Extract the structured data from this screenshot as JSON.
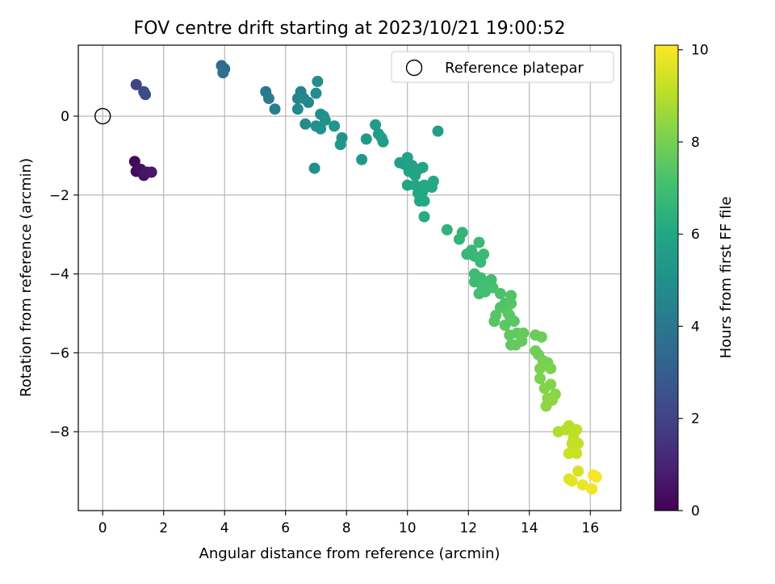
{
  "chart_data": {
    "type": "scatter",
    "title": "FOV centre drift starting at 2023/10/21 19:00:52",
    "xlabel": "Angular distance from reference (arcmin)",
    "ylabel": "Rotation from reference (arcmin)",
    "xlim": [
      -0.8,
      17
    ],
    "ylim": [
      -10,
      1.8
    ],
    "xticks": [
      0,
      2,
      4,
      6,
      8,
      10,
      12,
      14,
      16
    ],
    "yticks": [
      0,
      -2,
      -4,
      -6,
      -8
    ],
    "xtick_labels": [
      "0",
      "2",
      "4",
      "6",
      "8",
      "10",
      "12",
      "14",
      "16"
    ],
    "ytick_labels": [
      "0",
      "−2",
      "−4",
      "−6",
      "−8"
    ],
    "grid": true,
    "legend": {
      "position": "top-right",
      "entries": [
        "Reference platepar"
      ]
    },
    "reference_point": {
      "x": 0,
      "y": 0
    },
    "colormap": "viridis",
    "colorbar": {
      "label": "Hours from first FF file",
      "range": [
        0,
        10.1
      ],
      "ticks": [
        0,
        2,
        4,
        6,
        8,
        10
      ],
      "tick_labels": [
        "0",
        "2",
        "4",
        "6",
        "8",
        "10"
      ]
    },
    "points": [
      {
        "x": 1.05,
        "y": -1.15,
        "c": 0.2
      },
      {
        "x": 1.1,
        "y": -1.4,
        "c": 0.3
      },
      {
        "x": 1.25,
        "y": -1.35,
        "c": 0.4
      },
      {
        "x": 1.35,
        "y": -1.5,
        "c": 0.5
      },
      {
        "x": 1.45,
        "y": -1.42,
        "c": 0.6
      },
      {
        "x": 1.6,
        "y": -1.42,
        "c": 0.7
      },
      {
        "x": 1.1,
        "y": 0.8,
        "c": 2.0
      },
      {
        "x": 1.35,
        "y": 0.62,
        "c": 2.2
      },
      {
        "x": 1.4,
        "y": 0.55,
        "c": 2.4
      },
      {
        "x": 3.9,
        "y": 1.28,
        "c": 3.5
      },
      {
        "x": 4.0,
        "y": 1.2,
        "c": 3.6
      },
      {
        "x": 3.95,
        "y": 1.1,
        "c": 3.7
      },
      {
        "x": 5.35,
        "y": 0.62,
        "c": 4.0
      },
      {
        "x": 5.45,
        "y": 0.45,
        "c": 4.2
      },
      {
        "x": 5.65,
        "y": 0.18,
        "c": 4.3
      },
      {
        "x": 6.5,
        "y": 0.62,
        "c": 4.5
      },
      {
        "x": 6.4,
        "y": 0.45,
        "c": 4.5
      },
      {
        "x": 6.6,
        "y": 0.45,
        "c": 4.6
      },
      {
        "x": 6.75,
        "y": 0.35,
        "c": 4.6
      },
      {
        "x": 6.4,
        "y": 0.18,
        "c": 4.7
      },
      {
        "x": 6.65,
        "y": -0.2,
        "c": 4.8
      },
      {
        "x": 7.05,
        "y": 0.88,
        "c": 4.9
      },
      {
        "x": 7.0,
        "y": 0.58,
        "c": 4.9
      },
      {
        "x": 7.0,
        "y": -0.25,
        "c": 5.0
      },
      {
        "x": 7.15,
        "y": 0.05,
        "c": 5.0
      },
      {
        "x": 7.25,
        "y": 0.0,
        "c": 5.0
      },
      {
        "x": 7.3,
        "y": -0.1,
        "c": 5.1
      },
      {
        "x": 7.15,
        "y": -0.32,
        "c": 5.1
      },
      {
        "x": 6.95,
        "y": -1.32,
        "c": 5.0
      },
      {
        "x": 7.6,
        "y": -0.25,
        "c": 5.2
      },
      {
        "x": 7.85,
        "y": -0.55,
        "c": 5.2
      },
      {
        "x": 7.8,
        "y": -0.72,
        "c": 5.3
      },
      {
        "x": 8.5,
        "y": -1.1,
        "c": 5.4
      },
      {
        "x": 8.65,
        "y": -0.58,
        "c": 5.4
      },
      {
        "x": 8.95,
        "y": -0.22,
        "c": 5.5
      },
      {
        "x": 9.05,
        "y": -0.45,
        "c": 5.5
      },
      {
        "x": 9.15,
        "y": -0.55,
        "c": 5.6
      },
      {
        "x": 9.2,
        "y": -0.65,
        "c": 5.6
      },
      {
        "x": 9.75,
        "y": -1.18,
        "c": 5.7
      },
      {
        "x": 9.9,
        "y": -1.22,
        "c": 5.7
      },
      {
        "x": 10.0,
        "y": -1.05,
        "c": 5.8
      },
      {
        "x": 10.15,
        "y": -1.25,
        "c": 5.8
      },
      {
        "x": 10.05,
        "y": -1.4,
        "c": 5.8
      },
      {
        "x": 10.25,
        "y": -1.5,
        "c": 5.8
      },
      {
        "x": 10.35,
        "y": -1.35,
        "c": 5.9
      },
      {
        "x": 10.5,
        "y": -1.3,
        "c": 5.9
      },
      {
        "x": 10.0,
        "y": -1.75,
        "c": 5.9
      },
      {
        "x": 10.25,
        "y": -1.75,
        "c": 6.0
      },
      {
        "x": 10.35,
        "y": -1.95,
        "c": 6.0
      },
      {
        "x": 10.5,
        "y": -1.9,
        "c": 6.0
      },
      {
        "x": 10.4,
        "y": -2.15,
        "c": 6.0
      },
      {
        "x": 10.55,
        "y": -2.15,
        "c": 6.1
      },
      {
        "x": 10.55,
        "y": -1.75,
        "c": 6.1
      },
      {
        "x": 10.8,
        "y": -1.8,
        "c": 6.1
      },
      {
        "x": 10.85,
        "y": -1.65,
        "c": 6.1
      },
      {
        "x": 10.55,
        "y": -2.55,
        "c": 6.2
      },
      {
        "x": 11.0,
        "y": -0.38,
        "c": 5.6
      },
      {
        "x": 11.3,
        "y": -2.88,
        "c": 6.5
      },
      {
        "x": 11.8,
        "y": -2.95,
        "c": 6.6
      },
      {
        "x": 11.7,
        "y": -3.12,
        "c": 6.6
      },
      {
        "x": 11.95,
        "y": -3.5,
        "c": 6.7
      },
      {
        "x": 12.1,
        "y": -3.4,
        "c": 6.7
      },
      {
        "x": 12.2,
        "y": -3.55,
        "c": 6.7
      },
      {
        "x": 12.35,
        "y": -3.2,
        "c": 6.8
      },
      {
        "x": 12.5,
        "y": -3.5,
        "c": 6.8
      },
      {
        "x": 12.4,
        "y": -3.7,
        "c": 6.8
      },
      {
        "x": 12.2,
        "y": -4.0,
        "c": 6.9
      },
      {
        "x": 12.2,
        "y": -4.2,
        "c": 6.9
      },
      {
        "x": 12.4,
        "y": -4.1,
        "c": 6.9
      },
      {
        "x": 12.45,
        "y": -4.3,
        "c": 7.0
      },
      {
        "x": 12.6,
        "y": -4.2,
        "c": 7.0
      },
      {
        "x": 12.75,
        "y": -4.15,
        "c": 7.0
      },
      {
        "x": 12.35,
        "y": -4.5,
        "c": 7.0
      },
      {
        "x": 12.55,
        "y": -4.45,
        "c": 7.0
      },
      {
        "x": 12.8,
        "y": -4.35,
        "c": 7.1
      },
      {
        "x": 13.05,
        "y": -4.5,
        "c": 7.2
      },
      {
        "x": 13.4,
        "y": -4.55,
        "c": 7.3
      },
      {
        "x": 13.2,
        "y": -4.75,
        "c": 7.3
      },
      {
        "x": 13.05,
        "y": -4.85,
        "c": 7.3
      },
      {
        "x": 13.4,
        "y": -4.75,
        "c": 7.4
      },
      {
        "x": 13.3,
        "y": -5.0,
        "c": 7.4
      },
      {
        "x": 12.9,
        "y": -5.05,
        "c": 7.4
      },
      {
        "x": 12.85,
        "y": -5.2,
        "c": 7.4
      },
      {
        "x": 13.35,
        "y": -5.05,
        "c": 7.5
      },
      {
        "x": 13.5,
        "y": -5.2,
        "c": 7.5
      },
      {
        "x": 13.2,
        "y": -5.3,
        "c": 7.5
      },
      {
        "x": 13.35,
        "y": -5.55,
        "c": 7.6
      },
      {
        "x": 13.6,
        "y": -5.5,
        "c": 7.6
      },
      {
        "x": 13.4,
        "y": -5.8,
        "c": 7.6
      },
      {
        "x": 13.55,
        "y": -5.8,
        "c": 7.7
      },
      {
        "x": 13.75,
        "y": -5.7,
        "c": 7.7
      },
      {
        "x": 13.8,
        "y": -5.5,
        "c": 7.7
      },
      {
        "x": 14.2,
        "y": -5.55,
        "c": 7.8
      },
      {
        "x": 14.4,
        "y": -5.6,
        "c": 7.8
      },
      {
        "x": 14.2,
        "y": -5.95,
        "c": 7.9
      },
      {
        "x": 14.3,
        "y": -6.05,
        "c": 7.9
      },
      {
        "x": 14.45,
        "y": -6.2,
        "c": 8.0
      },
      {
        "x": 14.6,
        "y": -6.25,
        "c": 8.0
      },
      {
        "x": 14.7,
        "y": -6.4,
        "c": 8.1
      },
      {
        "x": 14.35,
        "y": -6.4,
        "c": 8.1
      },
      {
        "x": 14.35,
        "y": -6.65,
        "c": 8.1
      },
      {
        "x": 14.7,
        "y": -6.8,
        "c": 8.2
      },
      {
        "x": 14.5,
        "y": -6.9,
        "c": 8.2
      },
      {
        "x": 14.6,
        "y": -7.15,
        "c": 8.3
      },
      {
        "x": 14.85,
        "y": -7.05,
        "c": 8.3
      },
      {
        "x": 14.75,
        "y": -7.2,
        "c": 8.4
      },
      {
        "x": 14.55,
        "y": -7.35,
        "c": 8.4
      },
      {
        "x": 14.95,
        "y": -8.0,
        "c": 8.9
      },
      {
        "x": 15.2,
        "y": -7.95,
        "c": 9.0
      },
      {
        "x": 15.3,
        "y": -7.85,
        "c": 9.0
      },
      {
        "x": 15.55,
        "y": -7.95,
        "c": 9.1
      },
      {
        "x": 15.45,
        "y": -8.15,
        "c": 9.1
      },
      {
        "x": 15.4,
        "y": -8.3,
        "c": 9.2
      },
      {
        "x": 15.6,
        "y": -8.3,
        "c": 9.2
      },
      {
        "x": 15.3,
        "y": -8.55,
        "c": 9.3
      },
      {
        "x": 15.55,
        "y": -8.55,
        "c": 9.3
      },
      {
        "x": 15.6,
        "y": -9.0,
        "c": 9.5
      },
      {
        "x": 15.3,
        "y": -9.2,
        "c": 9.6
      },
      {
        "x": 15.4,
        "y": -9.25,
        "c": 9.7
      },
      {
        "x": 15.75,
        "y": -9.35,
        "c": 9.8
      },
      {
        "x": 16.05,
        "y": -9.45,
        "c": 9.9
      },
      {
        "x": 16.1,
        "y": -9.1,
        "c": 10.0
      },
      {
        "x": 16.2,
        "y": -9.15,
        "c": 10.0
      }
    ]
  }
}
